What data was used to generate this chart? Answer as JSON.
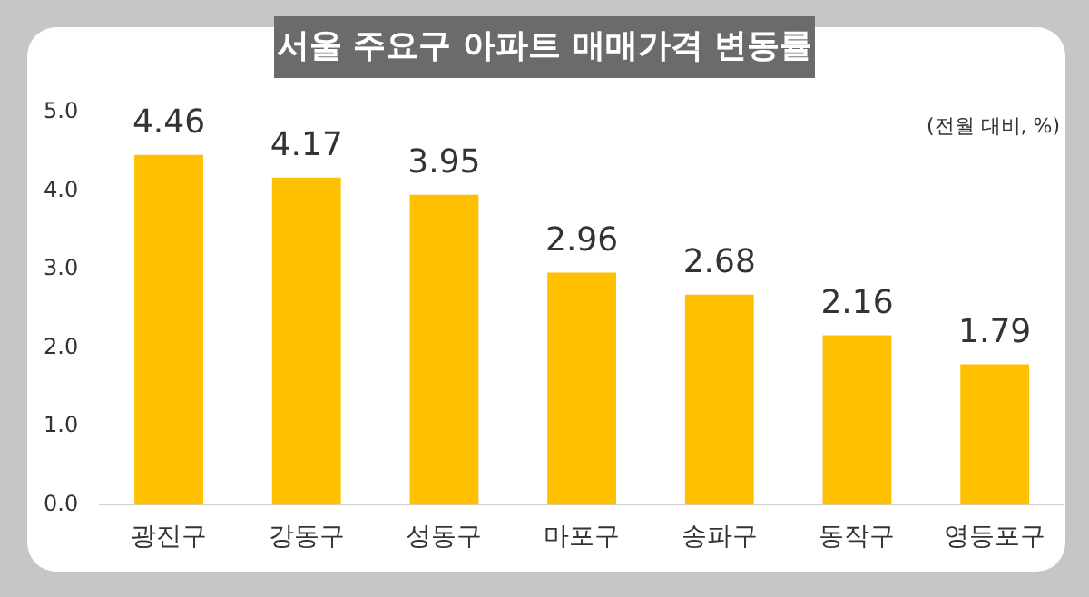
{
  "chart_data": {
    "type": "bar",
    "title": "서울 주요구 아파트 매매가격 변동률",
    "annotations": [
      "(전월 대비, %)"
    ],
    "categories": [
      "광진구",
      "강동구",
      "성동구",
      "마포구",
      "송파구",
      "동작구",
      "영등포구"
    ],
    "values": [
      4.46,
      4.17,
      3.95,
      2.96,
      2.68,
      2.16,
      1.79
    ],
    "color": "#ffc000",
    "ylim": [
      0,
      5
    ],
    "yticks": [
      {
        "value": 0,
        "label": "0.0"
      },
      {
        "value": 1,
        "label": "1.0"
      },
      {
        "value": 2,
        "label": "2.0"
      },
      {
        "value": 3,
        "label": "3.0"
      },
      {
        "value": 4,
        "label": "4.0"
      },
      {
        "value": 5,
        "label": "5.0"
      }
    ],
    "grid": false,
    "data_labels": true
  }
}
